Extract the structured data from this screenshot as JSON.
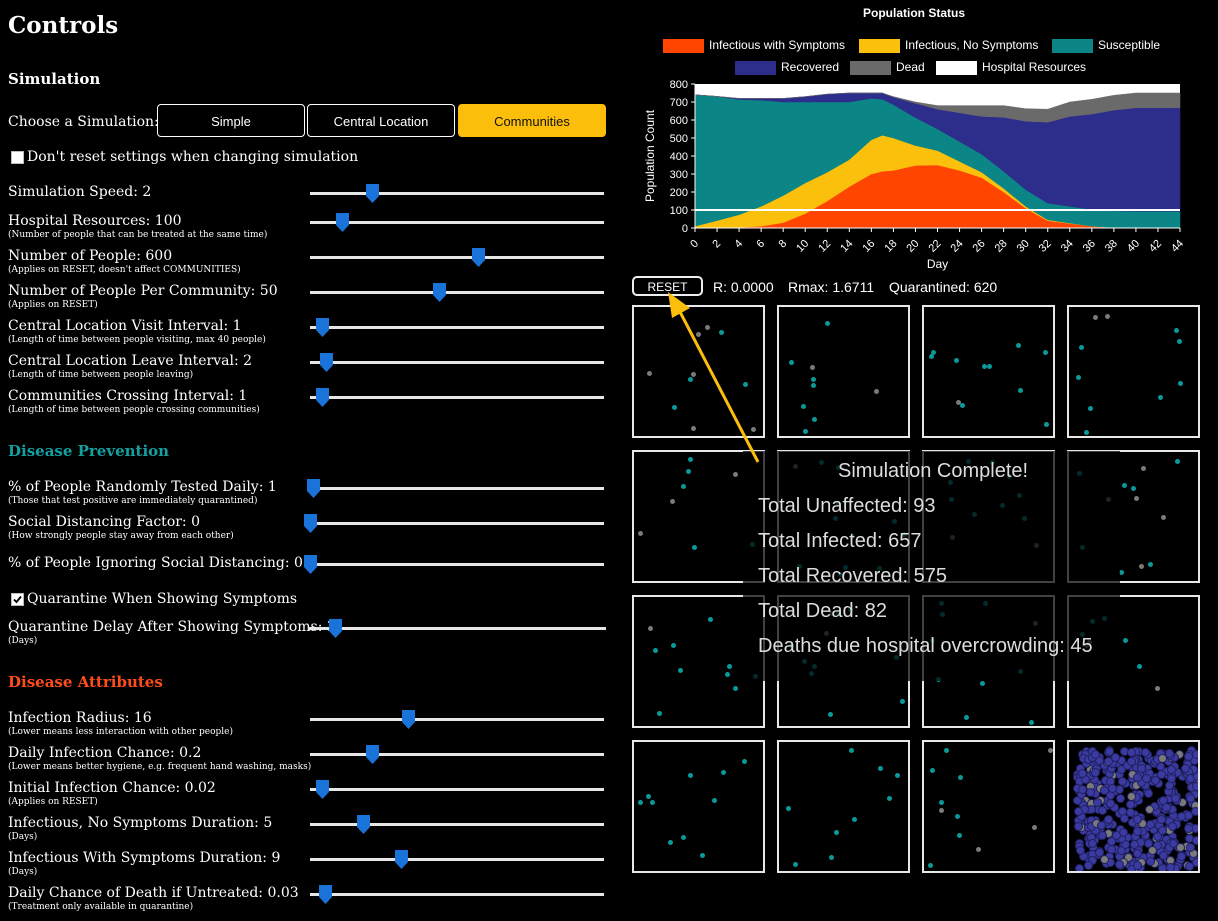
{
  "controls": {
    "title": "Controls",
    "simulation": {
      "heading": "Simulation",
      "choose_label": "Choose a Simulation:",
      "buttons": [
        "Simple",
        "Central Location",
        "Communities"
      ],
      "active": "Communities",
      "dont_reset_label": "Don't reset settings when changing simulation",
      "dont_reset_checked": false
    },
    "sliders_simulation": [
      {
        "label": "Simulation Speed: 2",
        "sub": "",
        "fraction": 0.21
      },
      {
        "label": "Hospital Resources: 100",
        "sub": "(Number of people that can be treated at the same time)",
        "fraction": 0.11
      },
      {
        "label": "Number of People: 600",
        "sub": "(Applies on RESET, doesn't affect COMMUNITIES)",
        "fraction": 0.57
      },
      {
        "label": "Number of People Per Community: 50",
        "sub": "(Applies on RESET)",
        "fraction": 0.44
      },
      {
        "label": "Central Location Visit Interval: 1",
        "sub": "(Length of time between people visiting, max 40 people)",
        "fraction": 0.04
      },
      {
        "label": "Central Location Leave Interval: 2",
        "sub": "(Length of time between people leaving)",
        "fraction": 0.055
      },
      {
        "label": "Communities Crossing Interval: 1",
        "sub": "(Length of time between people crossing communities)",
        "fraction": 0.04
      }
    ],
    "prevention": {
      "heading": "Disease Prevention",
      "heading_color": "#14a0a0",
      "sliders": [
        {
          "label": "% of People Randomly Tested Daily: 1",
          "sub": "(Those that test positive are immediately quarantined)",
          "fraction": 0.01
        },
        {
          "label": "Social Distancing Factor: 0",
          "sub": "(How strongly people stay away from each other)",
          "fraction": 0.0
        },
        {
          "label": "% of People Ignoring Social Distancing: 0",
          "sub": "",
          "fraction": 0.0
        }
      ],
      "quarantine_label": "Quarantine When Showing Symptoms",
      "quarantine_checked": true,
      "delay_slider": {
        "label": "Quarantine Delay After Showing Symptoms: 3",
        "sub": "(Days)",
        "fraction": 0.09
      }
    },
    "attributes": {
      "heading": "Disease Attributes",
      "heading_color": "#ff4d1a",
      "sliders": [
        {
          "label": "Infection Radius: 16",
          "sub": "(Lower means less interaction with other people)",
          "fraction": 0.335
        },
        {
          "label": "Daily Infection Chance: 0.2",
          "sub": "(Lower means better hygiene, e.g. frequent hand washing, masks)",
          "fraction": 0.21
        },
        {
          "label": "Initial Infection Chance: 0.02",
          "sub": "(Applies on RESET)",
          "fraction": 0.04
        },
        {
          "label": "Infectious, No Symptoms Duration: 5",
          "sub": "(Days)",
          "fraction": 0.18
        },
        {
          "label": "Infectious With Symptoms Duration: 9",
          "sub": "(Days)",
          "fraction": 0.31
        },
        {
          "label": "Daily Chance of Death if Untreated: 0.03",
          "sub": "(Treatment only available in quarantine)",
          "fraction": 0.05
        }
      ]
    }
  },
  "chart_data": {
    "type": "area",
    "title": "Population Status",
    "xlabel": "Day",
    "ylabel": "Population Count",
    "xlim": [
      0,
      44
    ],
    "ylim": [
      0,
      800
    ],
    "xticks": [
      0,
      2,
      4,
      6,
      8,
      10,
      12,
      14,
      16,
      18,
      20,
      22,
      24,
      26,
      28,
      30,
      32,
      34,
      36,
      38,
      40,
      42,
      44
    ],
    "yticks": [
      0,
      100,
      200,
      300,
      400,
      500,
      600,
      700,
      800
    ],
    "stacked": true,
    "legend_position": "top",
    "x": [
      0,
      2,
      4,
      6,
      8,
      10,
      12,
      14,
      16,
      17,
      18,
      20,
      22,
      24,
      26,
      28,
      30,
      32,
      34,
      36,
      38,
      40,
      42,
      44
    ],
    "series": [
      {
        "name": "Infectious with Symptoms",
        "color": "#ff4500",
        "values": [
          0,
          1,
          4,
          10,
          30,
          80,
          150,
          230,
          300,
          315,
          320,
          348,
          350,
          320,
          280,
          200,
          110,
          40,
          25,
          10,
          2,
          0,
          0,
          0
        ]
      },
      {
        "name": "Infectious, No Symptoms",
        "color": "#fbc00c",
        "values": [
          10,
          40,
          70,
          110,
          150,
          170,
          160,
          150,
          190,
          200,
          180,
          110,
          80,
          50,
          30,
          20,
          10,
          5,
          2,
          0,
          0,
          0,
          0,
          0
        ]
      },
      {
        "name": "Susceptible",
        "color": "#0b8585",
        "values": [
          730,
          690,
          640,
          590,
          520,
          450,
          390,
          320,
          230,
          200,
          185,
          155,
          120,
          110,
          100,
          95,
          93,
          93,
          93,
          93,
          93,
          93,
          93,
          93
        ]
      },
      {
        "name": "Recovered",
        "color": "#2d2d8c",
        "values": [
          0,
          0,
          6,
          10,
          20,
          30,
          44,
          50,
          30,
          35,
          42,
          80,
          110,
          160,
          210,
          300,
          380,
          450,
          500,
          530,
          560,
          575,
          575,
          575
        ]
      },
      {
        "name": "Dead",
        "color": "#6a6a6a",
        "values": [
          0,
          0,
          0,
          0,
          0,
          0,
          0,
          0,
          0,
          0,
          3,
          7,
          20,
          40,
          60,
          65,
          70,
          72,
          80,
          82,
          82,
          82,
          82,
          82
        ]
      }
    ],
    "hospital_resources": {
      "name": "Hospital Resources",
      "color": "#ffffff",
      "value": 100
    }
  },
  "status": {
    "reset_label": "RESET",
    "r": "R: 0.0000",
    "rmax": "Rmax: 1.6711",
    "quarantined": "Quarantined: 620"
  },
  "overlay": {
    "title": "Simulation Complete!",
    "lines": [
      "Total Unaffected: 93",
      "Total Infected: 657",
      "Total Recovered: 575",
      "Total Dead: 82",
      "Deaths due hospital overcrowding: 45"
    ]
  },
  "colors": {
    "accent": "#fbbf0b",
    "slider_thumb": "#1976d2",
    "susceptible_dot": "#0b9a9a",
    "dead_dot": "#7a7a7a",
    "recovered_dot": "#3a3aa0"
  }
}
